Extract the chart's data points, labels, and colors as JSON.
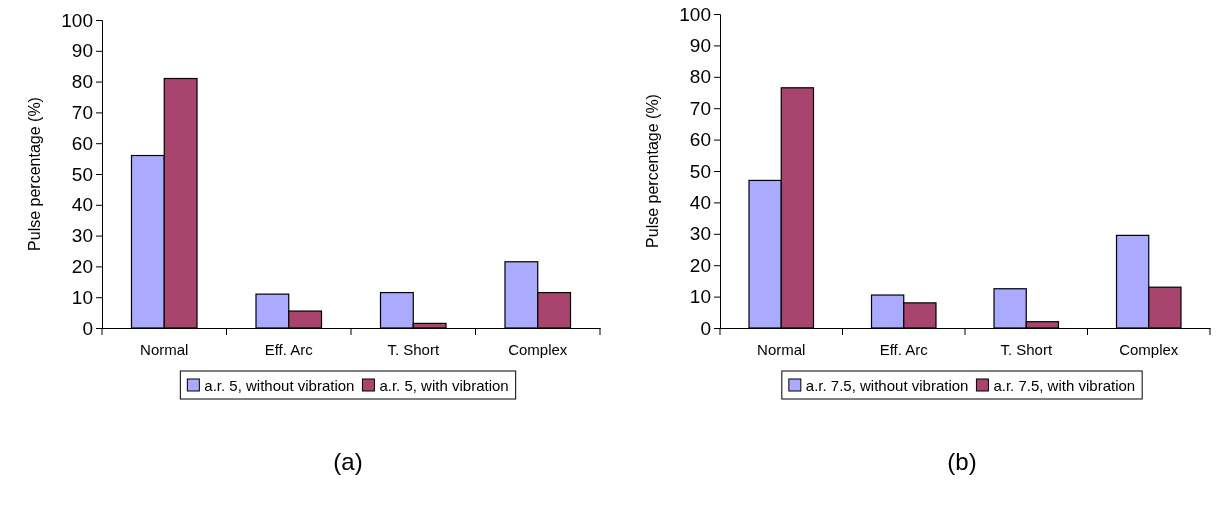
{
  "chart_data": [
    {
      "type": "bar",
      "ylabel": "Pulse percentage (%)",
      "categories": [
        "Normal",
        "Eff. Arc",
        "T. Short",
        "Complex"
      ],
      "series": [
        {
          "name": "a.r. 5, without vibration",
          "color": "#aaaaff",
          "values": [
            56,
            11,
            11.5,
            21.5
          ]
        },
        {
          "name": "a.r. 5, with vibration",
          "color": "#a8456f",
          "values": [
            81,
            5.5,
            1.5,
            11.5
          ]
        }
      ],
      "ylim": [
        0,
        100
      ],
      "yticks": [
        0,
        10,
        20,
        30,
        40,
        50,
        60,
        70,
        80,
        90,
        100
      ],
      "grid": false,
      "legend": "bottom",
      "annotations": [
        "(a)"
      ]
    },
    {
      "type": "bar",
      "ylabel": "Pulse percentage (%)",
      "categories": [
        "Normal",
        "Eff. Arc",
        "T. Short",
        "Complex"
      ],
      "series": [
        {
          "name": "a.r. 7.5, without vibration",
          "color": "#aaaaff",
          "values": [
            47,
            10.5,
            12.5,
            29.5
          ]
        },
        {
          "name": "a.r. 7.5, with vibration",
          "color": "#a8456f",
          "values": [
            76.5,
            8,
            2,
            13
          ]
        }
      ],
      "ylim": [
        0,
        100
      ],
      "yticks": [
        0,
        10,
        20,
        30,
        40,
        50,
        60,
        70,
        80,
        90,
        100
      ],
      "grid": false,
      "legend": "bottom",
      "annotations": [
        "(b)"
      ]
    }
  ]
}
